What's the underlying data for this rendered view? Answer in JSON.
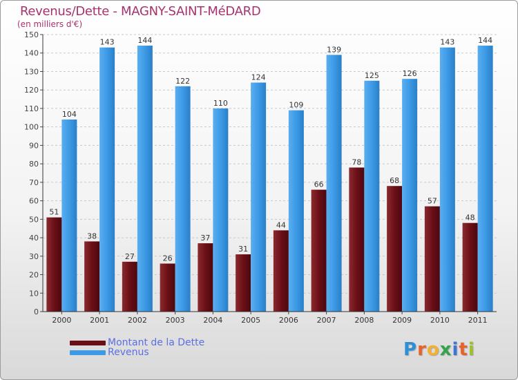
{
  "title": "Revenus/Dette - MAGNY-SAINT-MéDARD",
  "subtitle": "(en milliers d'€)",
  "legend": [
    {
      "label": "Montant de la Dette",
      "color": "#6b0f16"
    },
    {
      "label": "Revenus",
      "color": "#3d9ae6"
    }
  ],
  "logo": {
    "letters": [
      "P",
      "r",
      "o",
      "x",
      "i",
      "t",
      "i"
    ],
    "colors": [
      "#2e8fd6",
      "#e8622c",
      "#f2b130",
      "#34a34a",
      "#3d74d6",
      "#e8622c",
      "#9fbf2c"
    ]
  },
  "chart_data": {
    "type": "bar",
    "categories": [
      "2000",
      "2001",
      "2002",
      "2003",
      "2004",
      "2005",
      "2006",
      "2007",
      "2008",
      "2009",
      "2010",
      "2011"
    ],
    "series": [
      {
        "name": "Montant de la Dette",
        "values": [
          51,
          38,
          27,
          26,
          37,
          31,
          44,
          66,
          78,
          68,
          57,
          48
        ],
        "color": "#6b0f16"
      },
      {
        "name": "Revenus",
        "values": [
          104,
          143,
          144,
          122,
          110,
          124,
          109,
          139,
          125,
          126,
          143,
          144
        ],
        "color": "#3d9ae6"
      }
    ],
    "ylim": [
      0,
      150
    ],
    "yticks": [
      0,
      10,
      20,
      30,
      40,
      50,
      60,
      70,
      80,
      90,
      100,
      110,
      120,
      130,
      140,
      150
    ],
    "grid": true,
    "legend_position": "bottom-left",
    "xlabel": "",
    "ylabel": ""
  }
}
